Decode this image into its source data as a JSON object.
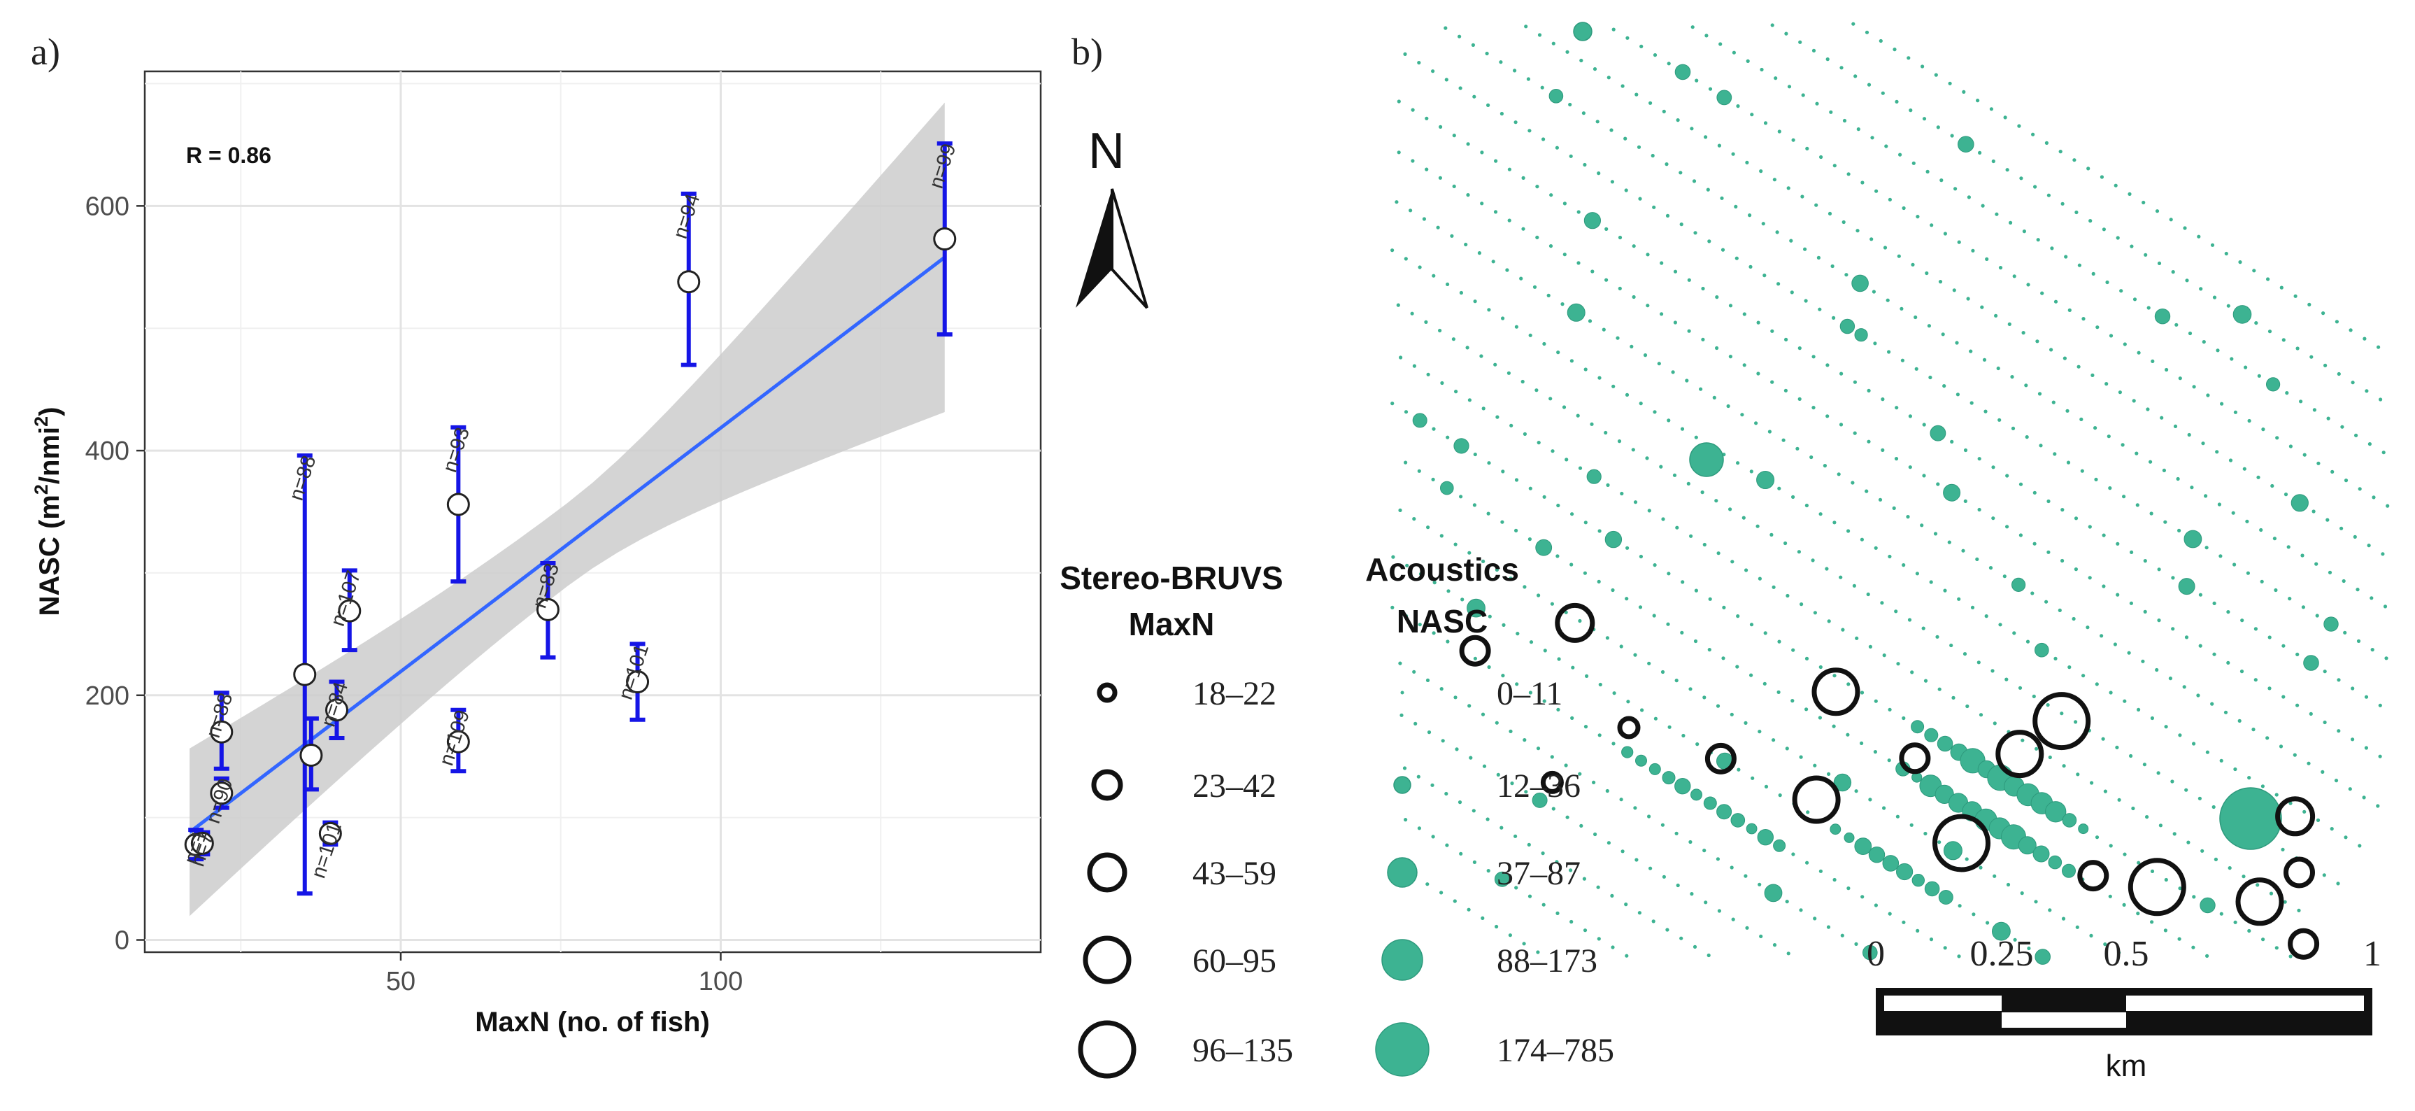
{
  "chart_data": [
    {
      "panel": "a)",
      "type": "scatter",
      "annotation": "R = 0.86",
      "xlabel": "MaxN (no. of fish)",
      "ylabel_main": "NASC (m",
      "ylabel_sup1": "2",
      "ylabel_mid": "/nmi",
      "ylabel_sup2": "2",
      "ylabel_end": ")",
      "xlim": [
        10,
        150
      ],
      "ylim": [
        -10,
        710
      ],
      "xticks": [
        50,
        100
      ],
      "yticks": [
        0,
        200,
        400,
        600
      ],
      "grid": true,
      "points": [
        {
          "x": 18,
          "y": 78,
          "lo": 66,
          "hi": 90,
          "n": "n=1"
        },
        {
          "x": 19,
          "y": 79,
          "lo": 70,
          "hi": 88,
          "n": "n=7"
        },
        {
          "x": 22,
          "y": 120,
          "lo": 108,
          "hi": 132,
          "n": "n=90"
        },
        {
          "x": 22,
          "y": 170,
          "lo": 140,
          "hi": 202,
          "n": "n=88"
        },
        {
          "x": 35,
          "y": 217,
          "lo": 38,
          "hi": 396,
          "n": "n=88"
        },
        {
          "x": 36,
          "y": 151,
          "lo": 123,
          "hi": 181,
          "n": ""
        },
        {
          "x": 39,
          "y": 87,
          "lo": 78,
          "hi": 96,
          "n": "n=101"
        },
        {
          "x": 40,
          "y": 188,
          "lo": 165,
          "hi": 211,
          "n": "n=84"
        },
        {
          "x": 42,
          "y": 269,
          "lo": 237,
          "hi": 302,
          "n": "n=107"
        },
        {
          "x": 59,
          "y": 356,
          "lo": 293,
          "hi": 419,
          "n": "n=93"
        },
        {
          "x": 59,
          "y": 162,
          "lo": 138,
          "hi": 188,
          "n": "n=109"
        },
        {
          "x": 73,
          "y": 270,
          "lo": 231,
          "hi": 308,
          "n": "n=83"
        },
        {
          "x": 87,
          "y": 211,
          "lo": 180,
          "hi": 242,
          "n": "n=101"
        },
        {
          "x": 95,
          "y": 538,
          "lo": 470,
          "hi": 610,
          "n": "n=94"
        },
        {
          "x": 135,
          "y": 573,
          "lo": 495,
          "hi": 651,
          "n": "n=99"
        }
      ],
      "fit": {
        "x": [
          17,
          135
        ],
        "y": [
          88,
          558
        ],
        "ci_lo": [
          28,
          432
        ],
        "ci_hi": [
          165,
          685
        ]
      },
      "colors": {
        "errorbar": "#1515e6",
        "fit": "#3366ff",
        "ci": "#cccccc",
        "point_fill": "#ffffff",
        "point_stroke": "#222222"
      }
    },
    {
      "panel": "b)",
      "type": "map",
      "north_label": "N",
      "legend_bruvs_title": [
        "Stereo-BRUVS",
        "MaxN"
      ],
      "legend_bruvs": [
        "18–22",
        "23–42",
        "43–59",
        "60–95",
        "96–135"
      ],
      "legend_acoustics_title": [
        "Acoustics",
        "NASC"
      ],
      "legend_acoustics": [
        "0–11",
        "12–36",
        "37–87",
        "88–173",
        "174–785"
      ],
      "scale_labels": [
        "0",
        "0.25",
        "0.5",
        "1"
      ],
      "scale_unit": "km",
      "bruvs_sites": [
        {
          "gx": 0.0,
          "gy": 0.77,
          "cls": 2
        },
        {
          "gx": 0.16,
          "gy": 1.1,
          "cls": 1
        },
        {
          "gx": 0.08,
          "gy": 0.42,
          "cls": 3
        },
        {
          "gx": 0.2,
          "gy": 0.7,
          "cls": 1
        },
        {
          "gx": 0.31,
          "gy": 0.6,
          "cls": 2
        },
        {
          "gx": 0.43,
          "gy": 0.53,
          "cls": 4
        },
        {
          "gx": 0.38,
          "gy": 0.06,
          "cls": 4
        },
        {
          "gx": 0.5,
          "gy": 0.13,
          "cls": 2
        },
        {
          "gx": 0.6,
          "gy": 0.35,
          "cls": 5
        },
        {
          "gx": 0.75,
          "gy": 0.16,
          "cls": 2
        },
        {
          "gx": 0.6,
          "gy": -0.14,
          "cls": 4
        },
        {
          "gx": 0.62,
          "gy": -0.37,
          "cls": 5
        },
        {
          "gx": 0.82,
          "gy": 0.05,
          "cls": 5
        },
        {
          "gx": 0.93,
          "gy": -0.14,
          "cls": 4
        },
        {
          "gx": 0.91,
          "gy": -0.56,
          "cls": 3
        },
        {
          "gx": 0.95,
          "gy": -0.35,
          "cls": 2
        },
        {
          "gx": 1.0,
          "gy": -0.08,
          "cls": 2
        }
      ]
    }
  ],
  "colors": {
    "acoustic": "#3db392",
    "acoustic_dark": "#2e9a7d",
    "ink": "#111111"
  }
}
